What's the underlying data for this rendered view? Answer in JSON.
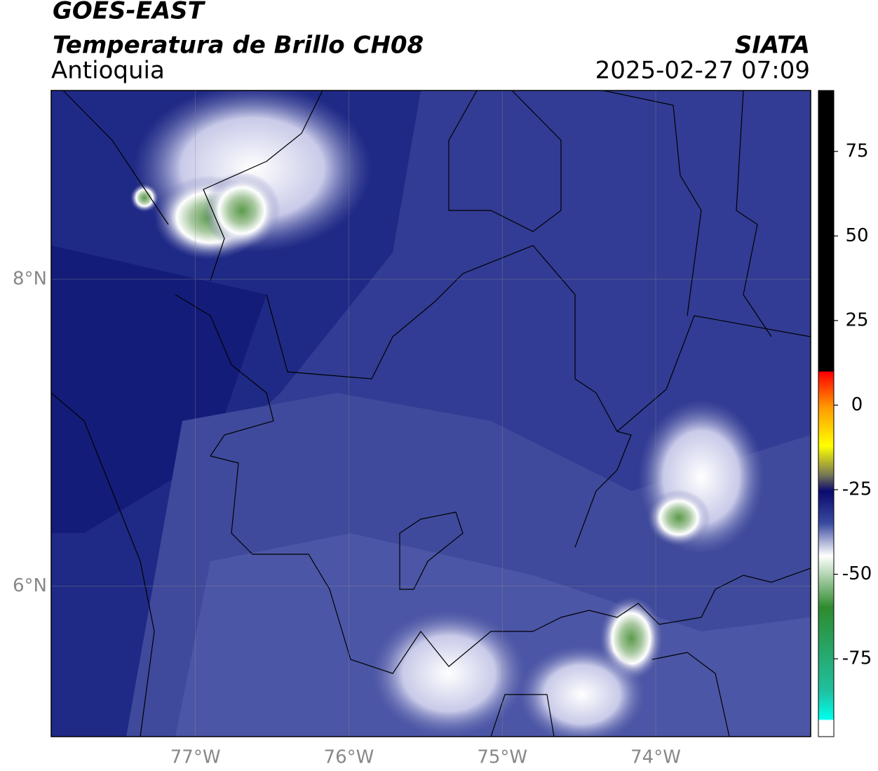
{
  "header": {
    "title": "GOES-EAST",
    "subtitle": "Temperatura de Brillo CH08",
    "region": "Antioquia",
    "source": "SIATA",
    "datetime": "2025-02-27 07:09"
  },
  "map": {
    "xlim": [
      -77.94,
      -72.99
    ],
    "ylim": [
      5.02,
      9.23
    ],
    "xticks": [
      {
        "value": -77,
        "label": "77°W"
      },
      {
        "value": -76,
        "label": "76°W"
      },
      {
        "value": -75,
        "label": "75°W"
      },
      {
        "value": -74,
        "label": "74°W"
      }
    ],
    "yticks": [
      {
        "value": 8,
        "label": "8°N"
      },
      {
        "value": 6,
        "label": "6°N"
      }
    ],
    "grid": true
  },
  "colorbar": {
    "lim": [
      -98,
      93
    ],
    "ticks": [
      75,
      50,
      25,
      0,
      -25,
      -50,
      -75
    ]
  }
}
